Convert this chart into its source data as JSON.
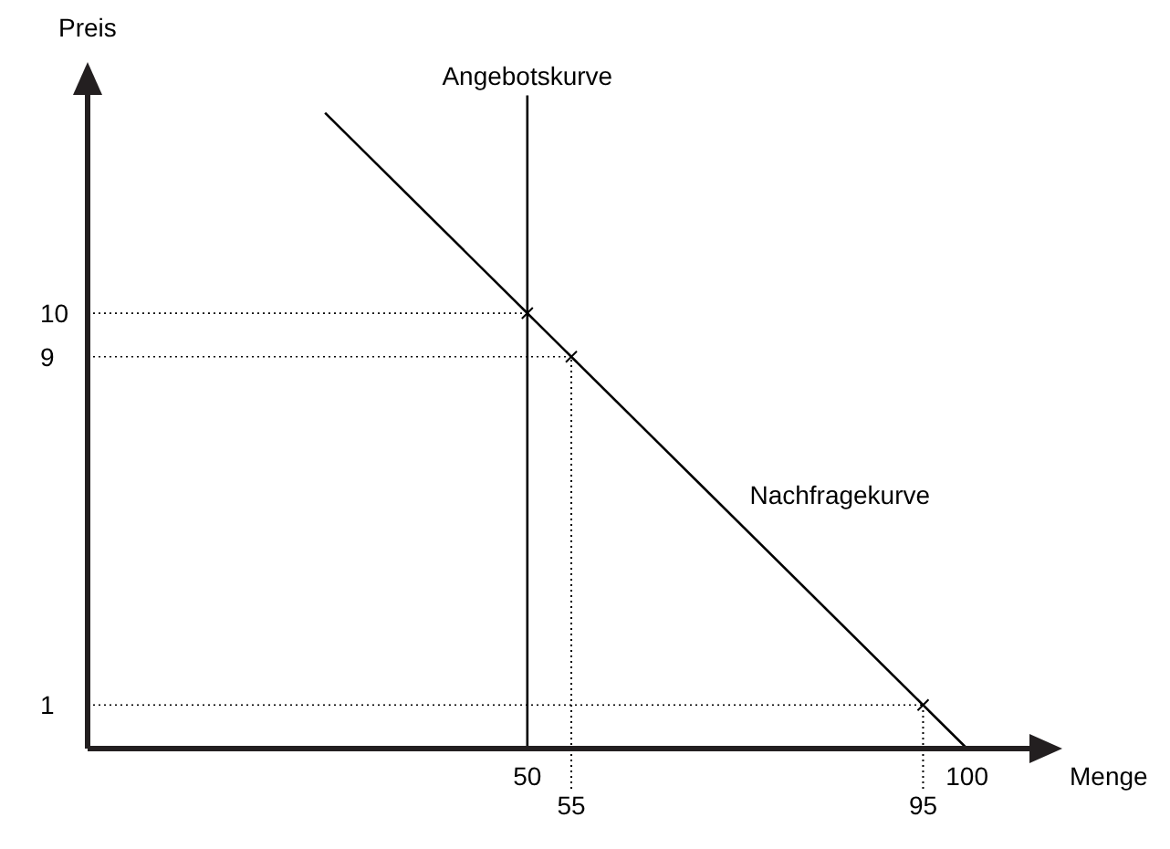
{
  "chart_data": {
    "type": "line",
    "xlabel": "Menge",
    "ylabel": "Preis",
    "xlim": [
      0,
      110
    ],
    "ylim": [
      0,
      15.6
    ],
    "xticks": [
      50,
      100
    ],
    "yticks": [
      1,
      9,
      10
    ],
    "grid": false,
    "line_style": "solid",
    "series": [
      {
        "name": "Angebotskurve",
        "color": "#000000",
        "x": [
          50,
          50
        ],
        "values": [
          0,
          15
        ]
      },
      {
        "name": "Nachfragekurve",
        "color": "#000000",
        "x": [
          27,
          100
        ],
        "values": [
          14.6,
          0
        ]
      },
      {
        "type": "scatter",
        "color": "#000000",
        "marker": "cross",
        "x": [
          50,
          55,
          95
        ],
        "values": [
          10,
          9,
          1
        ]
      }
    ],
    "ref_lines": [
      {
        "axis": "y",
        "value": 10,
        "line_style": "dotted",
        "color": "#000000"
      },
      {
        "axis": "y",
        "value": 9,
        "line_style": "dotted",
        "color": "#000000"
      },
      {
        "axis": "y",
        "value": 1,
        "line_style": "dotted",
        "color": "#000000"
      },
      {
        "axis": "x",
        "value": 55,
        "label": "55",
        "line_style": "dotted",
        "color": "#000000"
      },
      {
        "axis": "x",
        "value": 95,
        "label": "95",
        "line_style": "dotted",
        "color": "#000000"
      }
    ]
  }
}
